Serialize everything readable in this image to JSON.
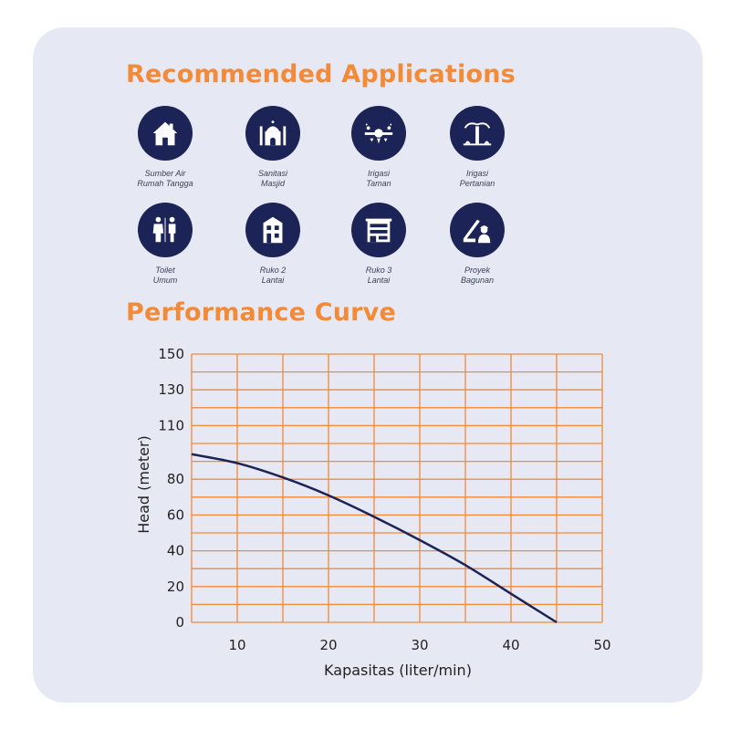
{
  "recommended": {
    "title": "Recommended Applications",
    "items": [
      {
        "icon": "house-icon",
        "line1": "Sumber Air",
        "line2": "Rumah Tangga"
      },
      {
        "icon": "mosque-icon",
        "line1": "Sanitasi",
        "line2": "Masjid"
      },
      {
        "icon": "garden-sprinkler-icon",
        "line1": "Irigasi",
        "line2": "Taman"
      },
      {
        "icon": "farm-irrigation-icon",
        "line1": "Irigasi",
        "line2": "Pertanian"
      },
      {
        "icon": "toilet-people-icon",
        "line1": "Toilet",
        "line2": "Umum"
      },
      {
        "icon": "shophouse-2-icon",
        "line1": "Ruko 2",
        "line2": "Lantai"
      },
      {
        "icon": "shophouse-3-icon",
        "line1": "Ruko 3",
        "line2": "Lantai"
      },
      {
        "icon": "construction-worker-icon",
        "line1": "Proyek",
        "line2": "Bagunan"
      }
    ]
  },
  "performance": {
    "title": "Performance Curve"
  },
  "colors": {
    "accent": "#f28a38",
    "icon_bg": "#1c2356",
    "curve": "#1c2356",
    "grid": "#f28a38",
    "card": "#e6e9f3"
  },
  "chart_data": {
    "type": "line",
    "xlabel": "Kapasitas (liter/min)",
    "ylabel": "Head (meter)",
    "xlim": [
      5,
      50
    ],
    "ylim": [
      0,
      150
    ],
    "x_ticks": [
      10,
      20,
      30,
      40,
      50
    ],
    "y_ticks": [
      0,
      20,
      40,
      60,
      80,
      110,
      130,
      150
    ],
    "grid": true,
    "series": [
      {
        "x": [
          5,
          10,
          15,
          20,
          25,
          30,
          35,
          40,
          45
        ],
        "y": [
          94,
          89,
          81,
          71,
          59,
          46,
          32,
          16,
          0
        ]
      }
    ]
  }
}
